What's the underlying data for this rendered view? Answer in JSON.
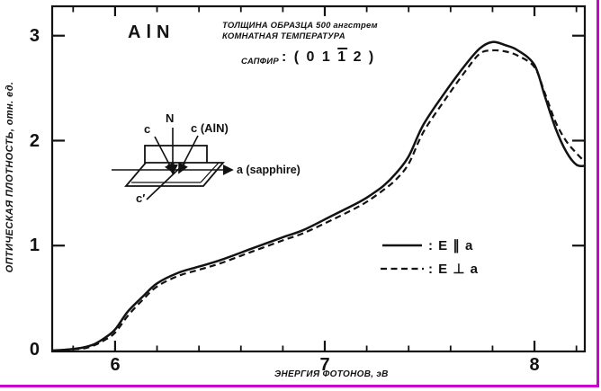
{
  "figure": {
    "title": "AlN",
    "sample_info_line1": "ТОЛЩИНА ОБРАЗЦА 500 ангстрем",
    "sample_info_line2": "КОМНАТНАЯ ТЕМПЕРАТУРА",
    "substrate": {
      "name": "САПФИР",
      "orientation_prefix": ": ( 0 1 ",
      "orientation_overbar": "1",
      "orientation_suffix": " 2 )"
    },
    "inset": {
      "labels": {
        "n_axis": "N",
        "c_left": "c",
        "c_aln": "c (AlN)",
        "a_sapphire": "a (sapphire)",
        "c_prime": "c′"
      }
    },
    "legend": {
      "solid": ": E ∥ a",
      "dashed": ": E ⊥ a"
    },
    "x_tick_labels": [
      "6",
      "7",
      "8"
    ],
    "y_tick_labels": [
      "0",
      "1",
      "2",
      "3"
    ],
    "xlabel": "ЭНЕРГИЯ ФОТОНОВ, эВ",
    "ylabel": "ОПТИЧЕСКАЯ ПЛОТНОСТЬ, отн. ед.",
    "border_color": "#cc00cc",
    "ink_color": "#121212"
  },
  "chart_data": {
    "type": "line",
    "title": "AlN optical density spectra on sapphire (011̄2), thickness 500 Å, room temperature",
    "xlabel": "ЭНЕРГИЯ ФОТОНОВ, эВ",
    "ylabel": "ОПТИЧЕСКАЯ ПЛОТНОСТЬ, отн. ед.",
    "xlim": [
      5.7,
      8.24
    ],
    "ylim": [
      0,
      3.28
    ],
    "x_major_ticks": [
      6,
      7,
      8
    ],
    "x_minor_tick_step": 0.2,
    "y_major_ticks": [
      0,
      1,
      2,
      3
    ],
    "grid": false,
    "legend_position": "center-right",
    "x": [
      5.7,
      5.78,
      5.85,
      5.9,
      5.95,
      6.0,
      6.06,
      6.13,
      6.2,
      6.3,
      6.4,
      6.5,
      6.65,
      6.8,
      6.9,
      7.04,
      7.15,
      7.21,
      7.28,
      7.34,
      7.4,
      7.47,
      7.57,
      7.67,
      7.74,
      7.8,
      7.86,
      7.92,
      8.0,
      8.05,
      8.1,
      8.15,
      8.2,
      8.24
    ],
    "series": [
      {
        "name": "E ∥ a",
        "line": "solid",
        "values": [
          0.0,
          0.01,
          0.03,
          0.06,
          0.12,
          0.2,
          0.37,
          0.51,
          0.64,
          0.74,
          0.8,
          0.86,
          0.97,
          1.08,
          1.15,
          1.29,
          1.4,
          1.47,
          1.57,
          1.69,
          1.85,
          2.15,
          2.45,
          2.72,
          2.88,
          2.94,
          2.91,
          2.86,
          2.72,
          2.42,
          2.12,
          1.9,
          1.77,
          1.76
        ]
      },
      {
        "name": "E ⊥ a",
        "line": "dashed",
        "values": [
          0.0,
          0.01,
          0.02,
          0.05,
          0.1,
          0.17,
          0.33,
          0.48,
          0.61,
          0.71,
          0.77,
          0.83,
          0.94,
          1.05,
          1.12,
          1.25,
          1.36,
          1.43,
          1.53,
          1.63,
          1.78,
          2.08,
          2.38,
          2.66,
          2.83,
          2.86,
          2.85,
          2.81,
          2.7,
          2.45,
          2.18,
          2.0,
          1.88,
          1.8
        ]
      }
    ]
  }
}
